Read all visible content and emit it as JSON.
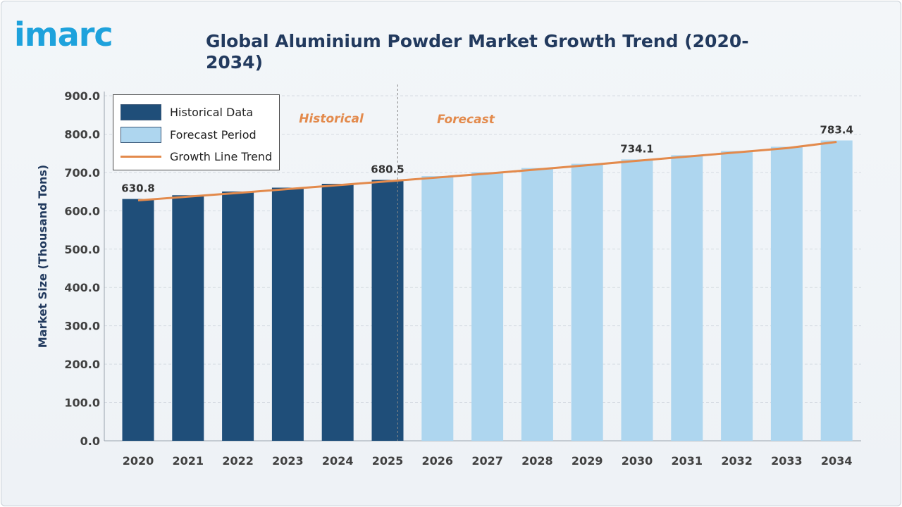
{
  "brand": {
    "logo_text": "imarc",
    "logo_color": "#1ea2dc"
  },
  "colors": {
    "historical_bar": "#1f4e79",
    "forecast_bar": "#aed6ef",
    "trend_line": "#e38a4c",
    "phase_label": "#e38a4c",
    "axis_text": "#404040",
    "title_text": "#223a5e"
  },
  "legend": {
    "items": [
      {
        "label": "Historical Data",
        "kind": "box",
        "color": "#1f4e79"
      },
      {
        "label": "Forecast Period",
        "kind": "box",
        "color": "#aed6ef"
      },
      {
        "label": "Growth Line Trend",
        "kind": "line",
        "color": "#e38a4c"
      }
    ]
  },
  "chart_data": {
    "type": "bar",
    "title": "Global Aluminium Powder Market Growth Trend (2020-2034)",
    "xlabel": "",
    "ylabel": "Market Size (Thousand Tons)",
    "ylim": [
      0,
      900
    ],
    "yticks": [
      "0.0",
      "100.0",
      "200.0",
      "300.0",
      "400.0",
      "500.0",
      "600.0",
      "700.0",
      "800.0",
      "900.0"
    ],
    "grid": true,
    "legend_position": "top-left",
    "categories": [
      "2020",
      "2021",
      "2022",
      "2023",
      "2024",
      "2025",
      "2026",
      "2027",
      "2028",
      "2029",
      "2030",
      "2031",
      "2032",
      "2033",
      "2034"
    ],
    "series": [
      {
        "name": "Historical Data",
        "values": [
          630.8,
          640.5,
          650.3,
          660.3,
          670.4,
          680.5,
          null,
          null,
          null,
          null,
          null,
          null,
          null,
          null,
          null
        ]
      },
      {
        "name": "Forecast Period",
        "values": [
          null,
          null,
          null,
          null,
          null,
          null,
          690.5,
          700.8,
          711.6,
          722.6,
          734.1,
          745.0,
          756.0,
          767.0,
          783.4
        ]
      },
      {
        "name": "Growth Line Trend",
        "type": "line",
        "values": [
          630.8,
          640.5,
          650.3,
          660.3,
          670.4,
          680.5,
          690.5,
          700.8,
          711.6,
          722.6,
          734.1,
          745.0,
          756.0,
          767.0,
          783.4
        ]
      }
    ],
    "data_labels": [
      {
        "category": "2020",
        "text": "630.8"
      },
      {
        "category": "2025",
        "text": "680.5"
      },
      {
        "category": "2030",
        "text": "734.1"
      },
      {
        "category": "2034",
        "text": "783.4"
      }
    ],
    "phase_labels": {
      "historical": "Historical",
      "forecast": "Forecast"
    }
  }
}
